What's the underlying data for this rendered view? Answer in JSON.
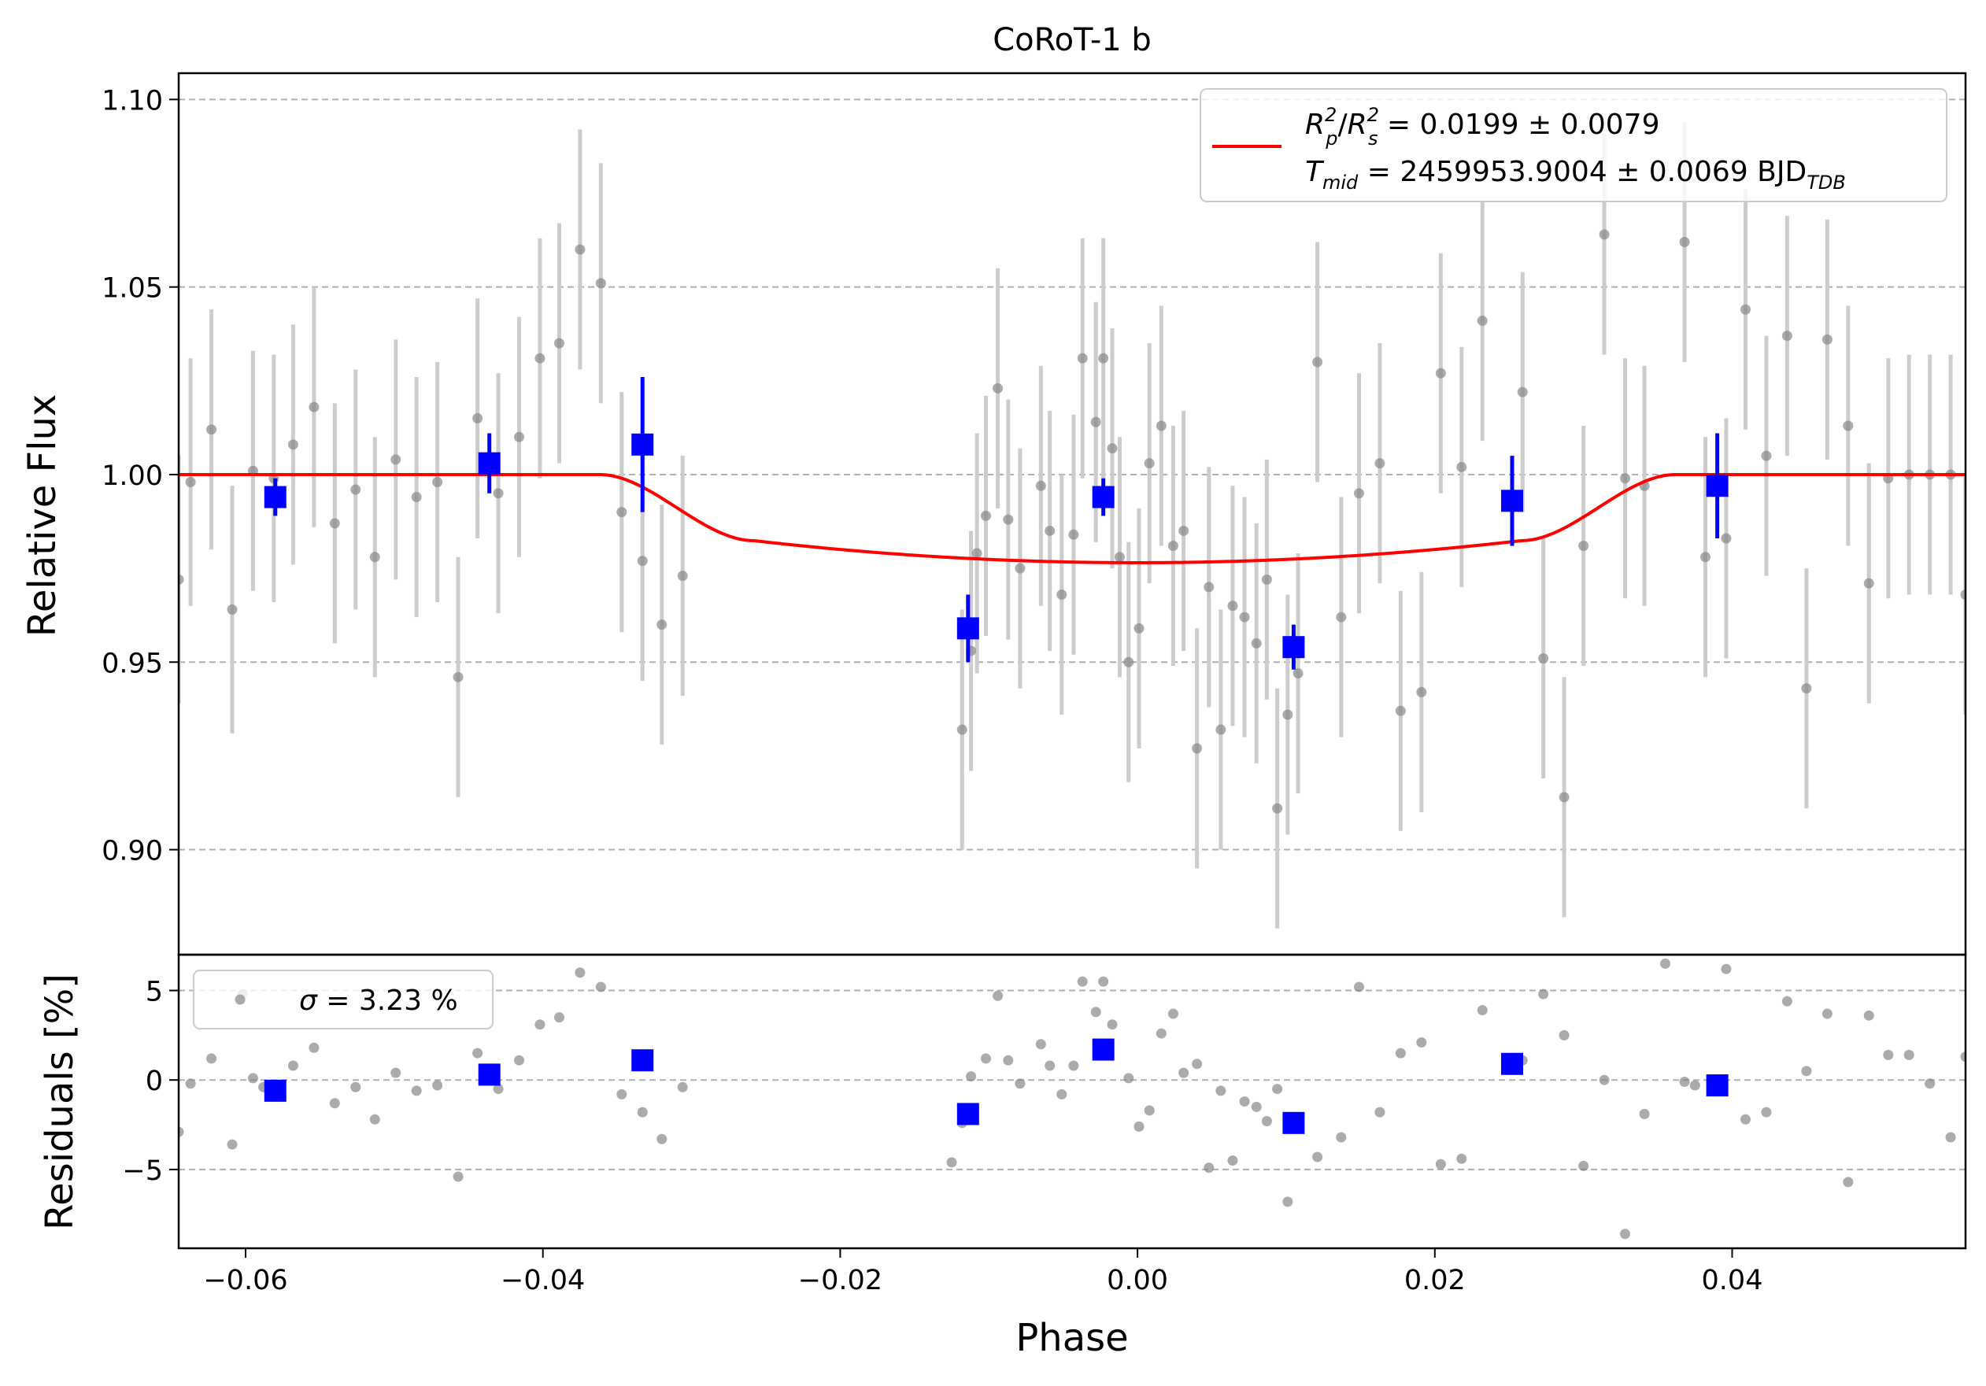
{
  "chart_data": [
    {
      "type": "scatter",
      "title": "CoRoT-1 b",
      "xlabel": "",
      "ylabel": "Relative Flux",
      "xlim": [
        -0.0645,
        0.0557
      ],
      "ylim": [
        0.872,
        1.107
      ],
      "grid": "horizontal-dashed",
      "yticks": [
        0.9,
        0.95,
        1.0,
        1.05,
        1.1
      ],
      "ytick_labels": [
        "0.90",
        "0.95",
        "1.00",
        "1.05",
        "1.10"
      ],
      "legend": {
        "placement": "top-right",
        "line1": "R_p^2/R_s^2 = 0.0199 ± 0.0079",
        "line2": "T_mid = 2459953.9004 ± 0.0069 BJD_TDB",
        "line1_parts": {
          "lhs_base1": "R",
          "lhs_sub1": "p",
          "lhs_sup1": "2",
          "slash": "/",
          "lhs_base2": "R",
          "lhs_sub2": "s",
          "lhs_sup2": "2",
          "rhs": " = 0.0199 ± 0.0079"
        },
        "line2_parts": {
          "base": "T",
          "sub": "mid",
          "rhs": " = 2459953.9004 ± 0.0069 BJD",
          "unit_sub": "TDB"
        },
        "color": "#ff0000"
      },
      "model": {
        "color": "#ff0000",
        "depth": 0.0235,
        "transit_start": -0.0362,
        "ingress_end": -0.0258,
        "egress_start": 0.0258,
        "transit_end": 0.0362
      },
      "raw_points": {
        "color": "#888888",
        "errorbar_color": "#cccccc",
        "x": [
          -0.0645,
          -0.0637,
          -0.0623,
          -0.0609,
          -0.0595,
          -0.0581,
          -0.0568,
          -0.0554,
          -0.054,
          -0.0526,
          -0.0513,
          -0.0499,
          -0.0485,
          -0.0471,
          -0.0457,
          -0.0444,
          -0.043,
          -0.0416,
          -0.0402,
          -0.0389,
          -0.0375,
          -0.0361,
          -0.0347,
          -0.0333,
          -0.032,
          -0.0306,
          -0.0118,
          -0.0112,
          -0.0108,
          -0.0102,
          -0.0094,
          -0.0087,
          -0.0079,
          -0.0065,
          -0.0059,
          -0.0051,
          -0.0043,
          -0.0037,
          -0.0028,
          -0.0023,
          -0.0017,
          -0.0012,
          -0.0006,
          0.0001,
          0.0008,
          0.0016,
          0.0024,
          0.0031,
          0.004,
          0.0048,
          0.0056,
          0.0064,
          0.0072,
          0.008,
          0.0087,
          0.0094,
          0.0101,
          0.0108,
          0.0121,
          0.0137,
          0.0149,
          0.0163,
          0.0177,
          0.0191,
          0.0204,
          0.0218,
          0.0232,
          0.0259,
          0.0273,
          0.0287,
          0.03,
          0.0314,
          0.0328,
          0.0341,
          0.0368,
          0.0382,
          0.0396,
          0.0409,
          0.0423,
          0.0437,
          0.045,
          0.0464,
          0.0478,
          0.0492,
          0.0505,
          0.0519,
          0.0533,
          0.0547,
          0.0557
        ],
        "y": [
          0.972,
          0.998,
          1.012,
          0.964,
          1.001,
          0.999,
          1.008,
          1.018,
          0.987,
          0.996,
          0.978,
          1.004,
          0.994,
          0.998,
          0.946,
          1.015,
          0.995,
          1.01,
          1.031,
          1.035,
          1.06,
          1.051,
          0.99,
          0.977,
          0.96,
          0.973,
          0.932,
          0.953,
          0.979,
          0.989,
          1.023,
          0.988,
          0.975,
          0.997,
          0.985,
          0.968,
          0.984,
          1.031,
          1.014,
          1.031,
          1.007,
          0.978,
          0.95,
          0.959,
          1.003,
          1.013,
          0.981,
          0.985,
          0.927,
          0.97,
          0.932,
          0.965,
          0.962,
          0.955,
          0.972,
          0.911,
          0.936,
          0.947,
          1.03,
          0.962,
          0.995,
          1.003,
          0.937,
          0.942,
          1.027,
          1.002,
          1.041,
          1.022,
          0.951,
          0.914,
          0.981,
          1.064,
          0.999,
          0.997,
          1.062,
          0.978,
          0.983,
          1.044,
          1.005,
          1.037,
          0.943,
          1.036,
          1.013,
          0.971,
          0.999,
          1.0,
          1.0,
          1.0,
          0.968
        ],
        "yerr": [
          0.033,
          0.033,
          0.032,
          0.033,
          0.032,
          0.033,
          0.032,
          0.032,
          0.032,
          0.032,
          0.032,
          0.032,
          0.032,
          0.032,
          0.032,
          0.032,
          0.032,
          0.032,
          0.032,
          0.032,
          0.032,
          0.032,
          0.032,
          0.032,
          0.032,
          0.032,
          0.032,
          0.032,
          0.032,
          0.032,
          0.032,
          0.032,
          0.032,
          0.032,
          0.032,
          0.032,
          0.032,
          0.032,
          0.032,
          0.032,
          0.032,
          0.032,
          0.032,
          0.032,
          0.032,
          0.032,
          0.032,
          0.032,
          0.032,
          0.032,
          0.032,
          0.032,
          0.032,
          0.032,
          0.032,
          0.032,
          0.032,
          0.032,
          0.032,
          0.032,
          0.032,
          0.032,
          0.032,
          0.032,
          0.032,
          0.032,
          0.032,
          0.032,
          0.032,
          0.032,
          0.032,
          0.032,
          0.032,
          0.032,
          0.032,
          0.032,
          0.032,
          0.032,
          0.032,
          0.032,
          0.032,
          0.032,
          0.032,
          0.032,
          0.032,
          0.032,
          0.032,
          0.032,
          0.032
        ]
      },
      "binned_points": {
        "color": "#0000ff",
        "x": [
          -0.058,
          -0.0436,
          -0.0333,
          -0.0114,
          -0.0023,
          0.0105,
          0.0252,
          0.039
        ],
        "y": [
          0.994,
          1.003,
          1.008,
          0.959,
          0.994,
          0.954,
          0.993,
          0.997
        ],
        "yerr": [
          0.005,
          0.008,
          0.018,
          0.009,
          0.005,
          0.006,
          0.012,
          0.014
        ]
      }
    },
    {
      "type": "scatter",
      "xlabel": "Phase",
      "ylabel": "Residuals [%]",
      "xlim": [
        -0.0645,
        0.0557
      ],
      "ylim": [
        -9.4,
        7.0
      ],
      "grid": "horizontal-dashed",
      "yticks": [
        -5,
        0,
        5
      ],
      "ytick_labels": [
        "−5",
        "0",
        "5"
      ],
      "xticks": [
        -0.06,
        -0.04,
        -0.02,
        0.0,
        0.02,
        0.04
      ],
      "xtick_labels": [
        "−0.06",
        "−0.04",
        "−0.02",
        "0.00",
        "0.02",
        "0.04"
      ],
      "legend": {
        "placement": "top-left",
        "label_symbol": "σ",
        "label_rest": " = 3.23 %"
      },
      "raw_points": {
        "color": "#888888",
        "x": [
          -0.0645,
          -0.0637,
          -0.0623,
          -0.0609,
          -0.0602,
          -0.0595,
          -0.0588,
          -0.0568,
          -0.0554,
          -0.054,
          -0.0526,
          -0.0513,
          -0.0499,
          -0.0485,
          -0.0471,
          -0.0457,
          -0.0444,
          -0.043,
          -0.0416,
          -0.0402,
          -0.0389,
          -0.0375,
          -0.0361,
          -0.0347,
          -0.0333,
          -0.032,
          -0.0306,
          -0.0125,
          -0.0118,
          -0.0112,
          -0.0102,
          -0.0094,
          -0.0087,
          -0.0079,
          -0.0065,
          -0.0059,
          -0.0051,
          -0.0043,
          -0.0037,
          -0.0028,
          -0.0023,
          -0.0017,
          -0.0006,
          0.0001,
          0.0008,
          0.0016,
          0.0024,
          0.0031,
          0.004,
          0.0048,
          0.0056,
          0.0064,
          0.0072,
          0.008,
          0.0087,
          0.0094,
          0.0101,
          0.0121,
          0.0137,
          0.0149,
          0.0163,
          0.0177,
          0.0191,
          0.0204,
          0.0218,
          0.0232,
          0.0259,
          0.0273,
          0.0287,
          0.03,
          0.0314,
          0.0328,
          0.0341,
          0.0355,
          0.0368,
          0.0375,
          0.0396,
          0.0409,
          0.0423,
          0.0437,
          0.045,
          0.0464,
          0.0478,
          0.0492,
          0.0505,
          0.0519,
          0.0533,
          0.0547,
          0.0557
        ],
        "y": [
          -2.9,
          -0.2,
          1.2,
          -3.6,
          4.8,
          0.1,
          -0.4,
          0.8,
          1.8,
          -1.3,
          -0.4,
          -2.2,
          0.4,
          -0.6,
          -0.3,
          -5.4,
          1.5,
          -0.5,
          1.1,
          3.1,
          3.5,
          6.0,
          5.2,
          -0.8,
          -1.8,
          -3.3,
          -0.4,
          -4.6,
          -2.4,
          0.2,
          1.2,
          4.7,
          1.1,
          -0.2,
          2.0,
          0.8,
          -0.8,
          0.8,
          5.5,
          3.8,
          5.5,
          3.1,
          0.1,
          -2.6,
          -1.7,
          2.6,
          3.7,
          0.4,
          0.9,
          -4.9,
          -0.6,
          -4.5,
          -1.2,
          -1.5,
          -2.3,
          -0.5,
          -6.8,
          -4.3,
          -3.2,
          5.2,
          -1.8,
          1.5,
          2.1,
          -4.7,
          -4.4,
          3.9,
          1.1,
          4.8,
          2.5,
          -4.8,
          0.0,
          -8.6,
          -1.9,
          6.5,
          -0.1,
          -0.3,
          6.2,
          -2.2,
          -1.8,
          4.4,
          0.5,
          3.7,
          -5.7,
          3.6,
          1.4,
          1.4,
          -0.2,
          -3.2,
          1.3
        ],
        "note_skip": []
      },
      "binned_points": {
        "color": "#0000ff",
        "x": [
          -0.058,
          -0.0436,
          -0.0333,
          -0.0114,
          -0.0023,
          0.0105,
          0.0252,
          0.039
        ],
        "y": [
          -0.6,
          0.3,
          1.1,
          -1.9,
          1.7,
          -2.4,
          0.9,
          -0.3
        ]
      }
    }
  ]
}
